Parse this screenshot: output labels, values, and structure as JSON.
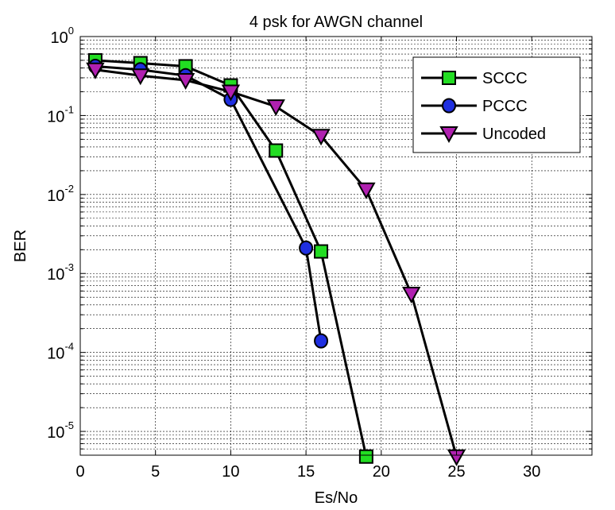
{
  "chart_data": {
    "type": "line",
    "title": "4 psk for AWGN channel",
    "xlabel": "Es/No",
    "ylabel": "BER",
    "xlim": [
      0,
      34
    ],
    "ylim": [
      5e-06,
      1
    ],
    "yscale": "log",
    "grid": true,
    "legend_position": "top-right",
    "x_ticks": [
      0,
      5,
      10,
      15,
      20,
      25,
      30
    ],
    "x_tick_labels": [
      "0",
      "5",
      "10",
      "15",
      "20",
      "25",
      "30"
    ],
    "y_ticks": [
      {
        "value": 1,
        "base": "10",
        "exp": "0"
      },
      {
        "value": 0.1,
        "base": "10",
        "exp": "-1"
      },
      {
        "value": 0.01,
        "base": "10",
        "exp": "-2"
      },
      {
        "value": 0.001,
        "base": "10",
        "exp": "-3"
      },
      {
        "value": 0.0001,
        "base": "10",
        "exp": "-4"
      },
      {
        "value": 1e-05,
        "base": "10",
        "exp": "-5"
      }
    ],
    "series": [
      {
        "name": "SCCC",
        "marker": "square",
        "color": "#22dd22",
        "x": [
          1,
          4,
          7,
          10,
          13,
          16,
          19
        ],
        "y": [
          0.5,
          0.46,
          0.42,
          0.24,
          0.036,
          0.0019,
          4.8e-06
        ]
      },
      {
        "name": "PCCC",
        "marker": "circle",
        "color": "#1f2fe0",
        "x": [
          1,
          4,
          7,
          10,
          15,
          16
        ],
        "y": [
          0.42,
          0.38,
          0.32,
          0.16,
          0.0021,
          0.00014
        ]
      },
      {
        "name": "Uncoded",
        "marker": "triangle-down",
        "color": "#b020b0",
        "x": [
          1,
          4,
          7,
          10,
          13,
          16,
          19,
          22,
          25
        ],
        "y": [
          0.38,
          0.32,
          0.28,
          0.2,
          0.13,
          0.055,
          0.0115,
          0.00055,
          4.8e-06
        ]
      }
    ]
  }
}
